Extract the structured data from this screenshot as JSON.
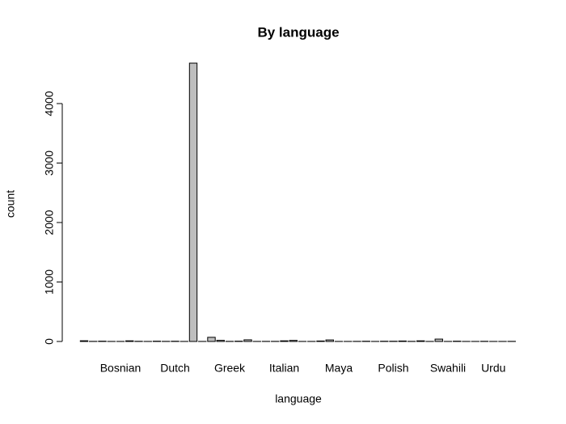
{
  "chart_data": {
    "type": "bar",
    "title": "By language",
    "x_label": "language",
    "y_label": "count",
    "categories": [
      null,
      null,
      null,
      null,
      "Bosnian",
      null,
      null,
      null,
      null,
      null,
      "Dutch",
      null,
      null,
      null,
      null,
      null,
      "Greek",
      null,
      null,
      null,
      null,
      null,
      "Italian",
      null,
      null,
      null,
      null,
      null,
      "Maya",
      null,
      null,
      null,
      null,
      null,
      "Polish",
      null,
      null,
      null,
      null,
      null,
      "Swahili",
      null,
      null,
      null,
      null,
      "Urdu",
      null,
      null
    ],
    "values": [
      12,
      2,
      5,
      1,
      1,
      11,
      3,
      1,
      5,
      2,
      4,
      1,
      4680,
      1,
      70,
      19,
      2,
      5,
      28,
      1,
      2,
      2,
      11,
      18,
      1,
      1,
      8,
      26,
      1,
      1,
      2,
      4,
      1,
      4,
      4,
      8,
      2,
      11,
      1,
      40,
      1,
      5,
      1,
      1,
      3,
      1,
      1,
      2
    ],
    "color": "#bebebe",
    "ylim": [
      0,
      4900
    ],
    "yticks": [
      0,
      1000,
      2000,
      3000,
      4000
    ],
    "grid": false
  }
}
